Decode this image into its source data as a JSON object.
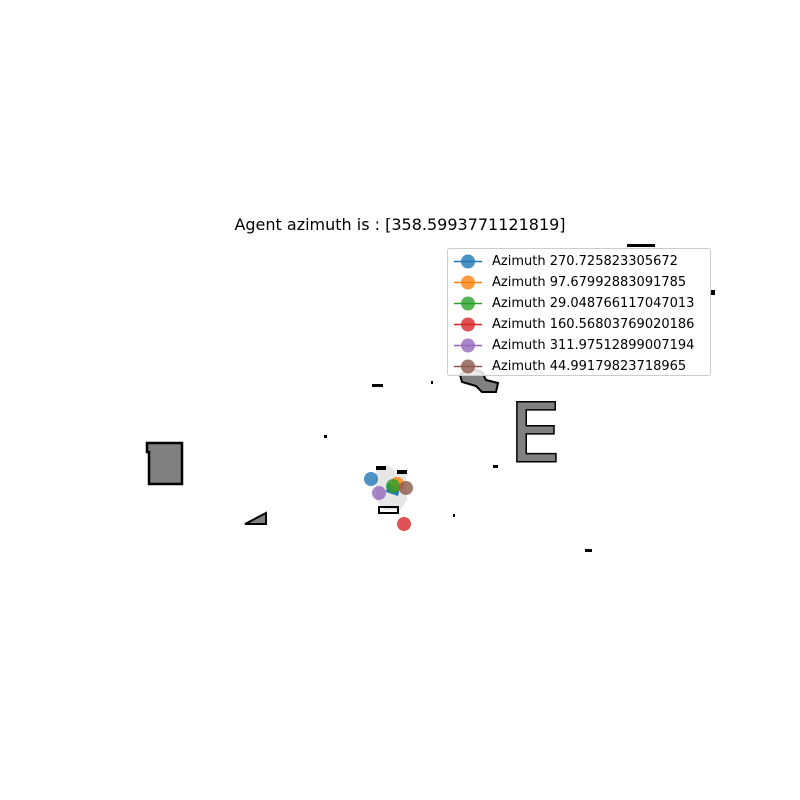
{
  "title": "Agent azimuth is : [358.5993771121819]",
  "colors": {
    "obstacle_fill": "#808080",
    "obstacle_edge": "#000000",
    "explored_area": "#e6e6e6"
  },
  "map": {
    "landmark_letter": "E"
  },
  "legend": {
    "items": [
      {
        "label": "Azimuth 270.725823305672",
        "color": "#1f77b4"
      },
      {
        "label": "Azimuth 97.67992883091785",
        "color": "#ff7f0e"
      },
      {
        "label": "Azimuth 29.048766117047013",
        "color": "#2ca02c"
      },
      {
        "label": "Azimuth 160.56803769020186",
        "color": "#d62728"
      },
      {
        "label": "Azimuth 311.97512899007194",
        "color": "#9467bd"
      },
      {
        "label": "Azimuth 44.99179823718965",
        "color": "#8c564b"
      }
    ]
  }
}
